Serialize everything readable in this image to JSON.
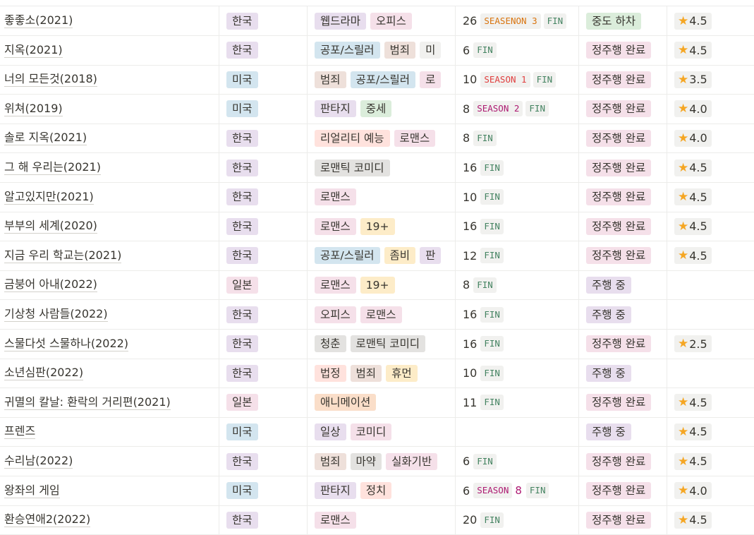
{
  "colors": {
    "purple": "#e8deee",
    "pink": "#f5e0e9",
    "blue": "#d3e5ef",
    "brown": "#eee0da",
    "gray": "#e3e2e0",
    "red": "#ffe2dd",
    "yellow": "#fdecc8",
    "orange": "#fadec9",
    "green": "#dbeddb",
    "star": "#f5a623"
  },
  "icons": {
    "rating": "star-icon"
  },
  "rows": [
    {
      "title": "좋좋소(2021)",
      "country": {
        "label": "한국",
        "color": "purple"
      },
      "genres": [
        {
          "label": "웹드라마",
          "color": "purple"
        },
        {
          "label": "오피스",
          "color": "pink"
        }
      ],
      "episodes": "26",
      "season": {
        "label": "SEASENON 3",
        "color": "orange",
        "after": ""
      },
      "fin": "FIN",
      "status": {
        "label": "중도 하차",
        "color": "green"
      },
      "rating": "4.5"
    },
    {
      "title": "지옥(2021)",
      "country": {
        "label": "한국",
        "color": "purple"
      },
      "genres": [
        {
          "label": "공포/스릴러",
          "color": "blue"
        },
        {
          "label": "범죄",
          "color": "brown"
        },
        {
          "label": "미",
          "color": "light"
        }
      ],
      "episodes": "6",
      "season": null,
      "fin": "FIN",
      "status": {
        "label": "정주행 완료",
        "color": "pink"
      },
      "rating": "4.5"
    },
    {
      "title": "너의 모든것(2018)",
      "country": {
        "label": "미국",
        "color": "blue"
      },
      "genres": [
        {
          "label": "범죄",
          "color": "brown"
        },
        {
          "label": "공포/스릴러",
          "color": "blue"
        },
        {
          "label": "로",
          "color": "pink"
        }
      ],
      "episodes": "10",
      "season": {
        "label": "SEASON 1",
        "color": "red",
        "after": ""
      },
      "fin": "FIN",
      "status": {
        "label": "정주행 완료",
        "color": "pink"
      },
      "rating": "3.5"
    },
    {
      "title": "위쳐(2019)",
      "country": {
        "label": "미국",
        "color": "blue"
      },
      "genres": [
        {
          "label": "판타지",
          "color": "purple"
        },
        {
          "label": "중세",
          "color": "green"
        }
      ],
      "episodes": "8",
      "season": {
        "label": "SEASON 2",
        "color": "pink",
        "after": ""
      },
      "fin": "FIN",
      "status": {
        "label": "정주행 완료",
        "color": "pink"
      },
      "rating": "4.0"
    },
    {
      "title": "솔로 지옥(2021)",
      "country": {
        "label": "한국",
        "color": "purple"
      },
      "genres": [
        {
          "label": "리얼리티 예능",
          "color": "red"
        },
        {
          "label": "로맨스",
          "color": "pink"
        }
      ],
      "episodes": "8",
      "season": null,
      "fin": "FIN",
      "status": {
        "label": "정주행 완료",
        "color": "pink"
      },
      "rating": "4.0"
    },
    {
      "title": "그 해 우리는(2021)",
      "country": {
        "label": "한국",
        "color": "purple"
      },
      "genres": [
        {
          "label": "로맨틱 코미디",
          "color": "gray"
        }
      ],
      "episodes": "16",
      "season": null,
      "fin": "FIN",
      "status": {
        "label": "정주행 완료",
        "color": "pink"
      },
      "rating": "4.5"
    },
    {
      "title": "알고있지만(2021)",
      "country": {
        "label": "한국",
        "color": "purple"
      },
      "genres": [
        {
          "label": "로맨스",
          "color": "pink"
        }
      ],
      "episodes": "10",
      "season": null,
      "fin": "FIN",
      "status": {
        "label": "정주행 완료",
        "color": "pink"
      },
      "rating": "4.5"
    },
    {
      "title": "부부의 세계(2020)",
      "country": {
        "label": "한국",
        "color": "purple"
      },
      "genres": [
        {
          "label": "로맨스",
          "color": "pink"
        },
        {
          "label": "19+",
          "color": "yellow"
        }
      ],
      "episodes": "16",
      "season": null,
      "fin": "FIN",
      "status": {
        "label": "정주행 완료",
        "color": "pink"
      },
      "rating": "4.5"
    },
    {
      "title": "지금 우리 학교는(2021)",
      "country": {
        "label": "한국",
        "color": "purple"
      },
      "genres": [
        {
          "label": "공포/스릴러",
          "color": "blue"
        },
        {
          "label": "좀비",
          "color": "yellow"
        },
        {
          "label": "판",
          "color": "purple"
        }
      ],
      "episodes": "12",
      "season": null,
      "fin": "FIN",
      "status": {
        "label": "정주행 완료",
        "color": "pink"
      },
      "rating": "4.5"
    },
    {
      "title": "금붕어 아내(2022)",
      "country": {
        "label": "일본",
        "color": "pink"
      },
      "genres": [
        {
          "label": "로맨스",
          "color": "pink"
        },
        {
          "label": "19+",
          "color": "yellow"
        }
      ],
      "episodes": "8",
      "season": null,
      "fin": "FIN",
      "status": {
        "label": "주행 중",
        "color": "purple"
      },
      "rating": ""
    },
    {
      "title": "기상청 사람들(2022)",
      "country": {
        "label": "한국",
        "color": "purple"
      },
      "genres": [
        {
          "label": "오피스",
          "color": "pink"
        },
        {
          "label": "로맨스",
          "color": "pink"
        }
      ],
      "episodes": "16",
      "season": null,
      "fin": "FIN",
      "status": {
        "label": "주행 중",
        "color": "purple"
      },
      "rating": ""
    },
    {
      "title": "스물다섯 스물하나(2022)",
      "country": {
        "label": "한국",
        "color": "purple"
      },
      "genres": [
        {
          "label": "청춘",
          "color": "gray"
        },
        {
          "label": "로맨틱 코미디",
          "color": "gray"
        }
      ],
      "episodes": "16",
      "season": null,
      "fin": "FIN",
      "status": {
        "label": "정주행 완료",
        "color": "pink"
      },
      "rating": "2.5"
    },
    {
      "title": "소년심판(2022)",
      "country": {
        "label": "한국",
        "color": "purple"
      },
      "genres": [
        {
          "label": "법정",
          "color": "red"
        },
        {
          "label": "범죄",
          "color": "brown"
        },
        {
          "label": "휴먼",
          "color": "yellow"
        }
      ],
      "episodes": "10",
      "season": null,
      "fin": "FIN",
      "status": {
        "label": "주행 중",
        "color": "purple"
      },
      "rating": ""
    },
    {
      "title": "귀멸의 칼날: 환락의 거리편(2021)",
      "country": {
        "label": "일본",
        "color": "pink"
      },
      "genres": [
        {
          "label": "애니메이션",
          "color": "orange"
        }
      ],
      "episodes": "11",
      "season": null,
      "fin": "FIN",
      "status": {
        "label": "정주행 완료",
        "color": "pink"
      },
      "rating": "4.5"
    },
    {
      "title": "프렌즈",
      "country": {
        "label": "미국",
        "color": "blue"
      },
      "genres": [
        {
          "label": "일상",
          "color": "purple"
        },
        {
          "label": "코미디",
          "color": "pink"
        }
      ],
      "episodes": "",
      "season": null,
      "fin": "",
      "status": {
        "label": "주행 중",
        "color": "purple"
      },
      "rating": "4.5"
    },
    {
      "title": "수리남(2022)",
      "country": {
        "label": "한국",
        "color": "purple"
      },
      "genres": [
        {
          "label": "범죄",
          "color": "brown"
        },
        {
          "label": "마약",
          "color": "gray"
        },
        {
          "label": "실화기반",
          "color": "pink"
        }
      ],
      "episodes": "6",
      "season": null,
      "fin": "FIN",
      "status": {
        "label": "정주행 완료",
        "color": "pink"
      },
      "rating": "4.5"
    },
    {
      "title": "왕좌의 게임",
      "country": {
        "label": "미국",
        "color": "blue"
      },
      "genres": [
        {
          "label": "판타지",
          "color": "purple"
        },
        {
          "label": "정치",
          "color": "red"
        }
      ],
      "episodes": "6",
      "season": {
        "label": "SEASON ",
        "color": "pink",
        "after": "8"
      },
      "fin": "FIN",
      "status": {
        "label": "정주행 완료",
        "color": "pink"
      },
      "rating": "4.0"
    },
    {
      "title": "환승연애2(2022)",
      "country": {
        "label": "한국",
        "color": "purple"
      },
      "genres": [
        {
          "label": "로맨스",
          "color": "pink"
        }
      ],
      "episodes": "20",
      "season": null,
      "fin": "FIN",
      "status": {
        "label": "정주행 완료",
        "color": "pink"
      },
      "rating": "4.5"
    }
  ]
}
